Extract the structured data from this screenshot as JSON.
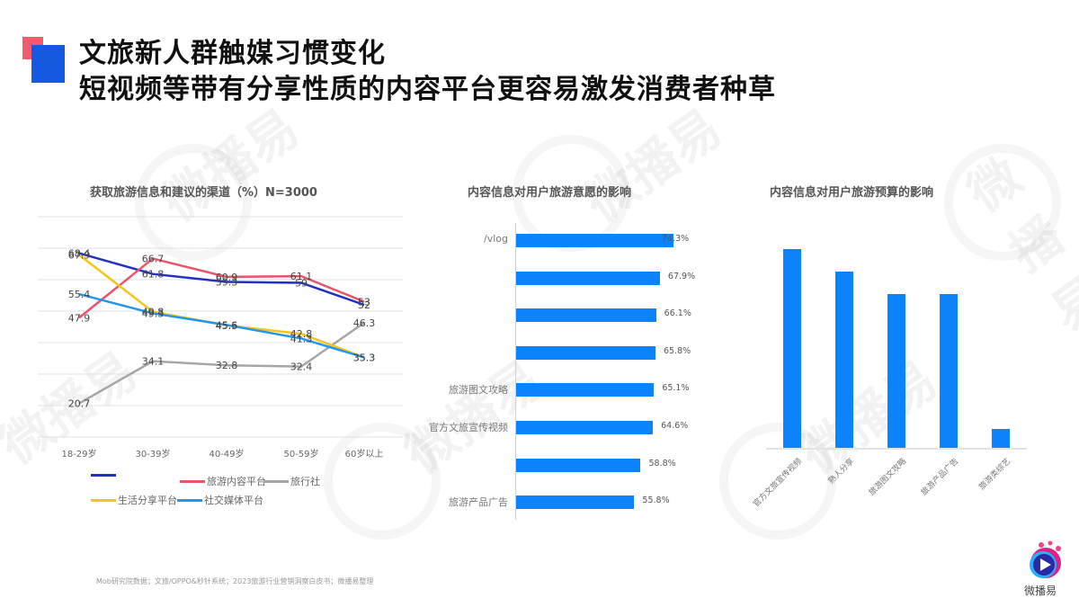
{
  "header": {
    "title_line1": "文旅新人群触媒习惯变化",
    "title_line2": "短视频等带有分享性质的内容平台更容易激发消费者种草",
    "accent_red": "#f15b6c",
    "accent_blue": "#1559e0"
  },
  "watermark": {
    "text": "微播易"
  },
  "chart_data": [
    {
      "type": "line",
      "title": "获取旅游信息和建议的渠道（%）N=3000",
      "categories": [
        "18-29岁",
        "30-39岁",
        "40-49岁",
        "50-59岁",
        "60岁以上"
      ],
      "series": [
        {
          "name": "",
          "color": "#1f2fc8",
          "values": [
            68.4,
            61.8,
            59.3,
            59,
            52
          ]
        },
        {
          "name": "旅游内容平台",
          "color": "#e8546a",
          "values": [
            47.9,
            66.7,
            60.9,
            61.1,
            53
          ]
        },
        {
          "name": "旅行社",
          "color": "#a6a6a6",
          "values": [
            20.7,
            34.1,
            32.8,
            32.4,
            46.3
          ]
        },
        {
          "name": "生活分享平台",
          "color": "#f5c518",
          "values": [
            67.9,
            49.8,
            45.5,
            42.8,
            35.3
          ]
        },
        {
          "name": "社交媒体平台",
          "color": "#2196f3",
          "values": [
            55.4,
            49.3,
            45.6,
            41.3,
            35.3
          ]
        }
      ],
      "ylim": [
        10,
        80
      ],
      "grid": true,
      "legend_position": "bottom"
    },
    {
      "type": "bar",
      "orientation": "horizontal",
      "title": "内容信息对用户旅游意愿的影响",
      "categories": [
        "/vlog",
        "",
        "",
        "",
        "旅游图文攻略",
        "官方文旅宣传视频",
        "",
        "旅游产品广告"
      ],
      "values": [
        74.3,
        67.9,
        66.1,
        65.8,
        65.1,
        64.6,
        58.8,
        55.8
      ],
      "value_labels": [
        "74.3%",
        "67.9%",
        "66.1%",
        "65.8%",
        "65.1%",
        "64.6%",
        "58.8%",
        "55.8%"
      ],
      "color": "#0c82fb"
    },
    {
      "type": "bar",
      "orientation": "vertical",
      "title": "内容信息对用户旅游预算的影响",
      "categories": [
        "官方文旅宣传视频",
        "熟人分享",
        "旅游图文攻略",
        "旅游产品广告",
        "旅游类综艺"
      ],
      "values": [
        221,
        196,
        171,
        171,
        21
      ],
      "value_note": "relative bar heights (no axis or labels shown)",
      "color": "#0c82fb"
    }
  ],
  "footer": {
    "source": "Mob研究院数据；文旅/OPPO&秒针系统；2023旅游行业营销洞察白皮书；微播易整理",
    "logo_text": "微播易"
  }
}
